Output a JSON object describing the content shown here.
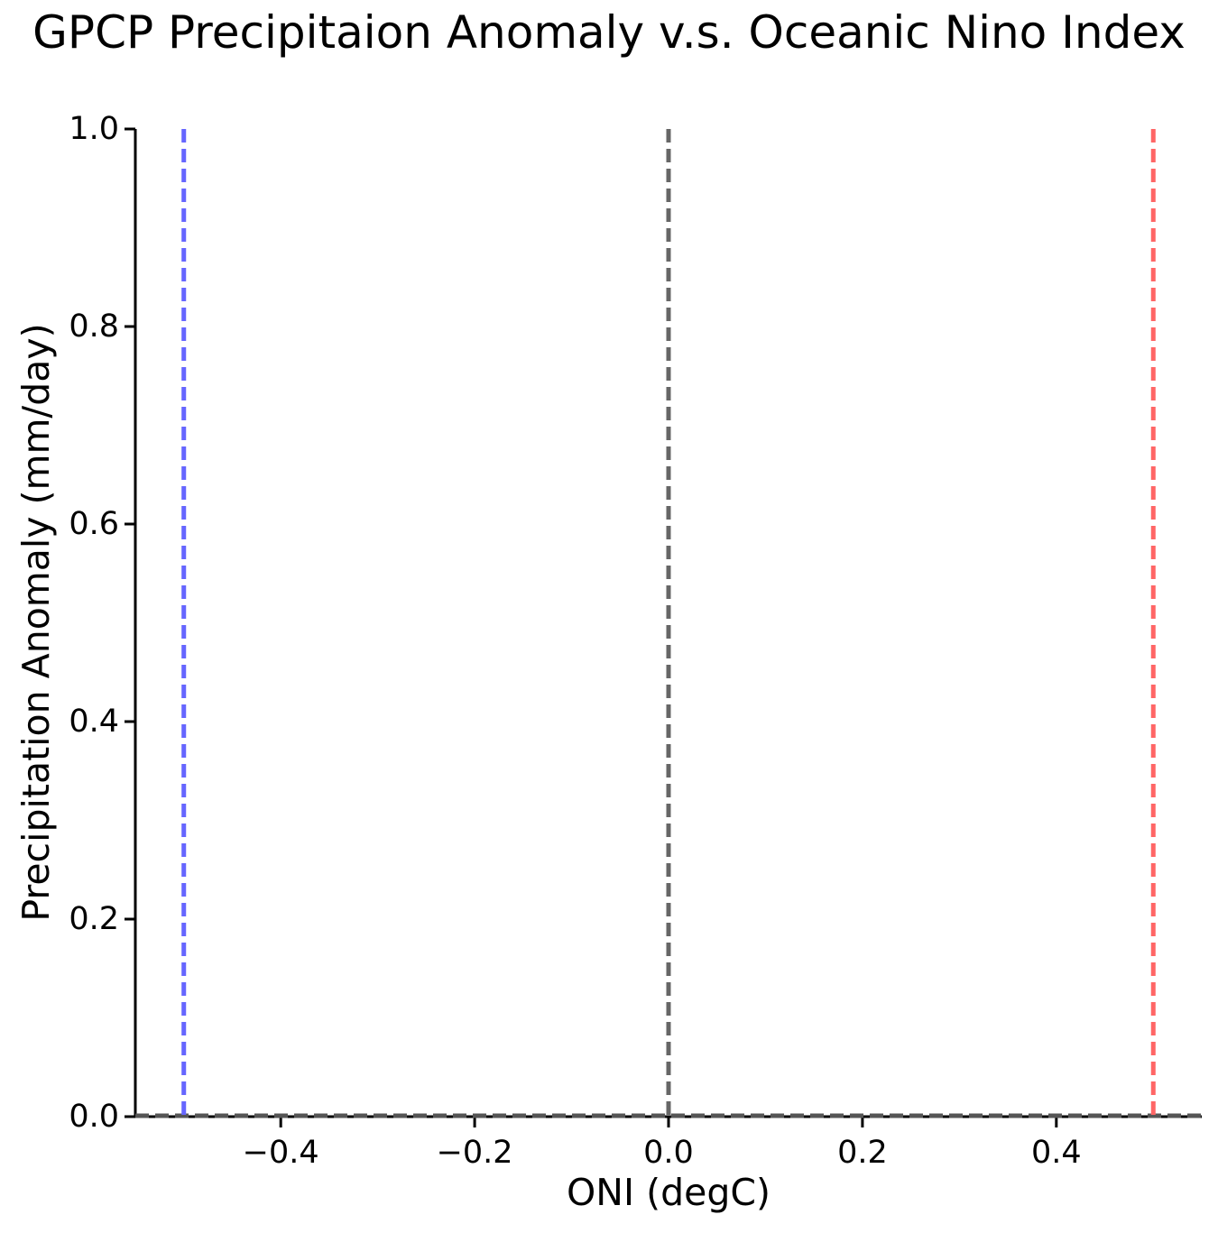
{
  "chart_data": {
    "type": "line",
    "title": "GPCP Precipitaion Anomaly v.s. Oceanic Nino Index",
    "xlabel": "ONI (degC)",
    "ylabel": "Precipitation Anomaly (mm/day)",
    "xlim": [
      -0.55,
      0.55
    ],
    "ylim": [
      0.0,
      1.0
    ],
    "x_ticks": [
      -0.4,
      -0.2,
      0.0,
      0.2,
      0.4
    ],
    "x_tick_labels": [
      "−0.4",
      "−0.2",
      "0.0",
      "0.2",
      "0.4"
    ],
    "y_ticks": [
      0.0,
      0.2,
      0.4,
      0.6,
      0.8,
      1.0
    ],
    "y_tick_labels": [
      "0.0",
      "0.2",
      "0.4",
      "0.6",
      "0.8",
      "1.0"
    ],
    "grid": false,
    "legend_visible": false,
    "series": [],
    "vlines": [
      {
        "name": "negative-oni-threshold-line",
        "x": -0.5,
        "color": "#6666ff",
        "style": "dashed"
      },
      {
        "name": "zero-oni-line",
        "x": 0.0,
        "color": "#666666",
        "style": "dashed"
      },
      {
        "name": "positive-oni-threshold-line",
        "x": 0.5,
        "color": "#ff6666",
        "style": "dashed"
      }
    ],
    "hlines": [
      {
        "name": "zero-anomaly-line",
        "y": 0.0,
        "color": "#555555",
        "style": "dashed"
      }
    ],
    "colors": {
      "spine": "#000000",
      "text": "#000000",
      "background": "#ffffff"
    }
  }
}
